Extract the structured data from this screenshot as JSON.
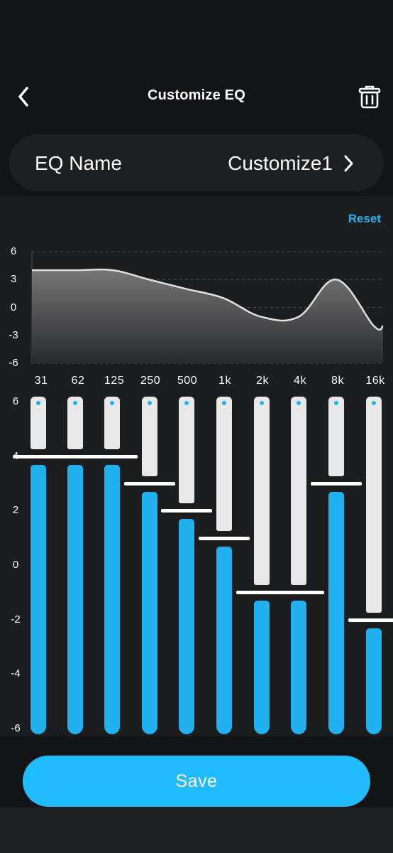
{
  "header": {
    "title": "Customize EQ",
    "back_icon": "chevron-left-icon",
    "delete_icon": "trash-icon"
  },
  "eq_name": {
    "label": "EQ Name",
    "value": "Customize1",
    "icon": "chevron-right-icon"
  },
  "reset_label": "Reset",
  "colors": {
    "accent": "#21b1ee",
    "background": "#131415",
    "panel": "#1c1d1f",
    "slider_track": "#e8e8e8",
    "curve_line": "#e0e0e0"
  },
  "curve": {
    "y_ticks": [
      "6",
      "3",
      "0",
      "-3",
      "-6"
    ],
    "y_range": [
      -6,
      6
    ],
    "frequencies": [
      "31",
      "62",
      "125",
      "250",
      "500",
      "1k",
      "2k",
      "4k",
      "8k",
      "16k"
    ]
  },
  "sliders": {
    "scale_labels": [
      "6",
      "4",
      "2",
      "0",
      "-2",
      "-4",
      "-6"
    ],
    "range": [
      -6,
      6
    ],
    "bands": [
      {
        "freq": "31",
        "gain": 4
      },
      {
        "freq": "62",
        "gain": 4
      },
      {
        "freq": "125",
        "gain": 4
      },
      {
        "freq": "250",
        "gain": 3
      },
      {
        "freq": "500",
        "gain": 2
      },
      {
        "freq": "1k",
        "gain": 1
      },
      {
        "freq": "2k",
        "gain": -1
      },
      {
        "freq": "4k",
        "gain": -1
      },
      {
        "freq": "8k",
        "gain": 3
      },
      {
        "freq": "16k",
        "gain": -2
      }
    ]
  },
  "save_label": "Save"
}
